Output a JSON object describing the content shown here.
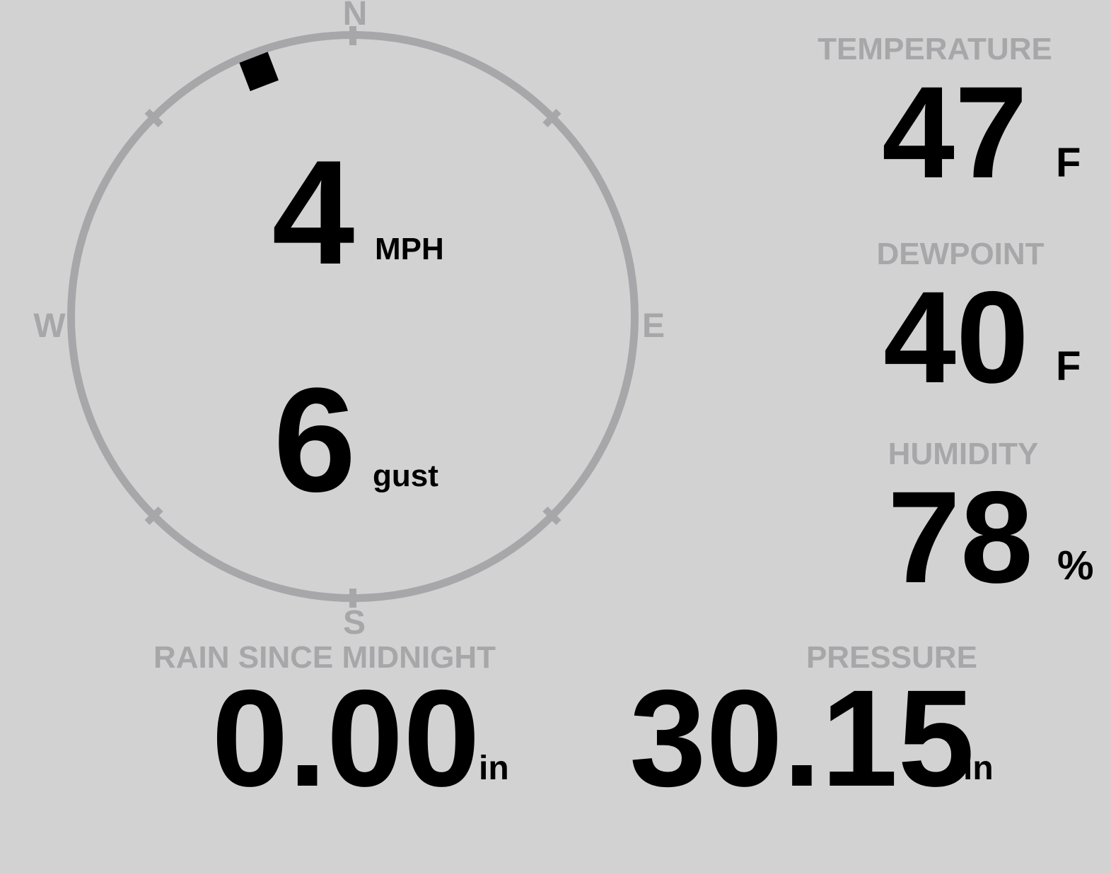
{
  "colors": {
    "background": "#d2d2d3",
    "muted": "#a7a7a9",
    "value": "#000000"
  },
  "compass": {
    "cardinal": {
      "n": "N",
      "e": "E",
      "s": "S",
      "w": "W"
    },
    "wind_speed": "4",
    "wind_speed_unit": "MPH",
    "wind_gust": "6",
    "wind_gust_unit": "gust",
    "wind_direction_deg": 339
  },
  "metrics": {
    "temperature": {
      "label": "TEMPERATURE",
      "value": "47",
      "unit": "F"
    },
    "dewpoint": {
      "label": "DEWPOINT",
      "value": "40",
      "unit": "F"
    },
    "humidity": {
      "label": "HUMIDITY",
      "value": "78",
      "unit": "%"
    },
    "rain": {
      "label": "RAIN SINCE MIDNIGHT",
      "value": "0.00",
      "unit": "in"
    },
    "pressure": {
      "label": "PRESSURE",
      "value": "30.15",
      "unit": "in"
    }
  }
}
